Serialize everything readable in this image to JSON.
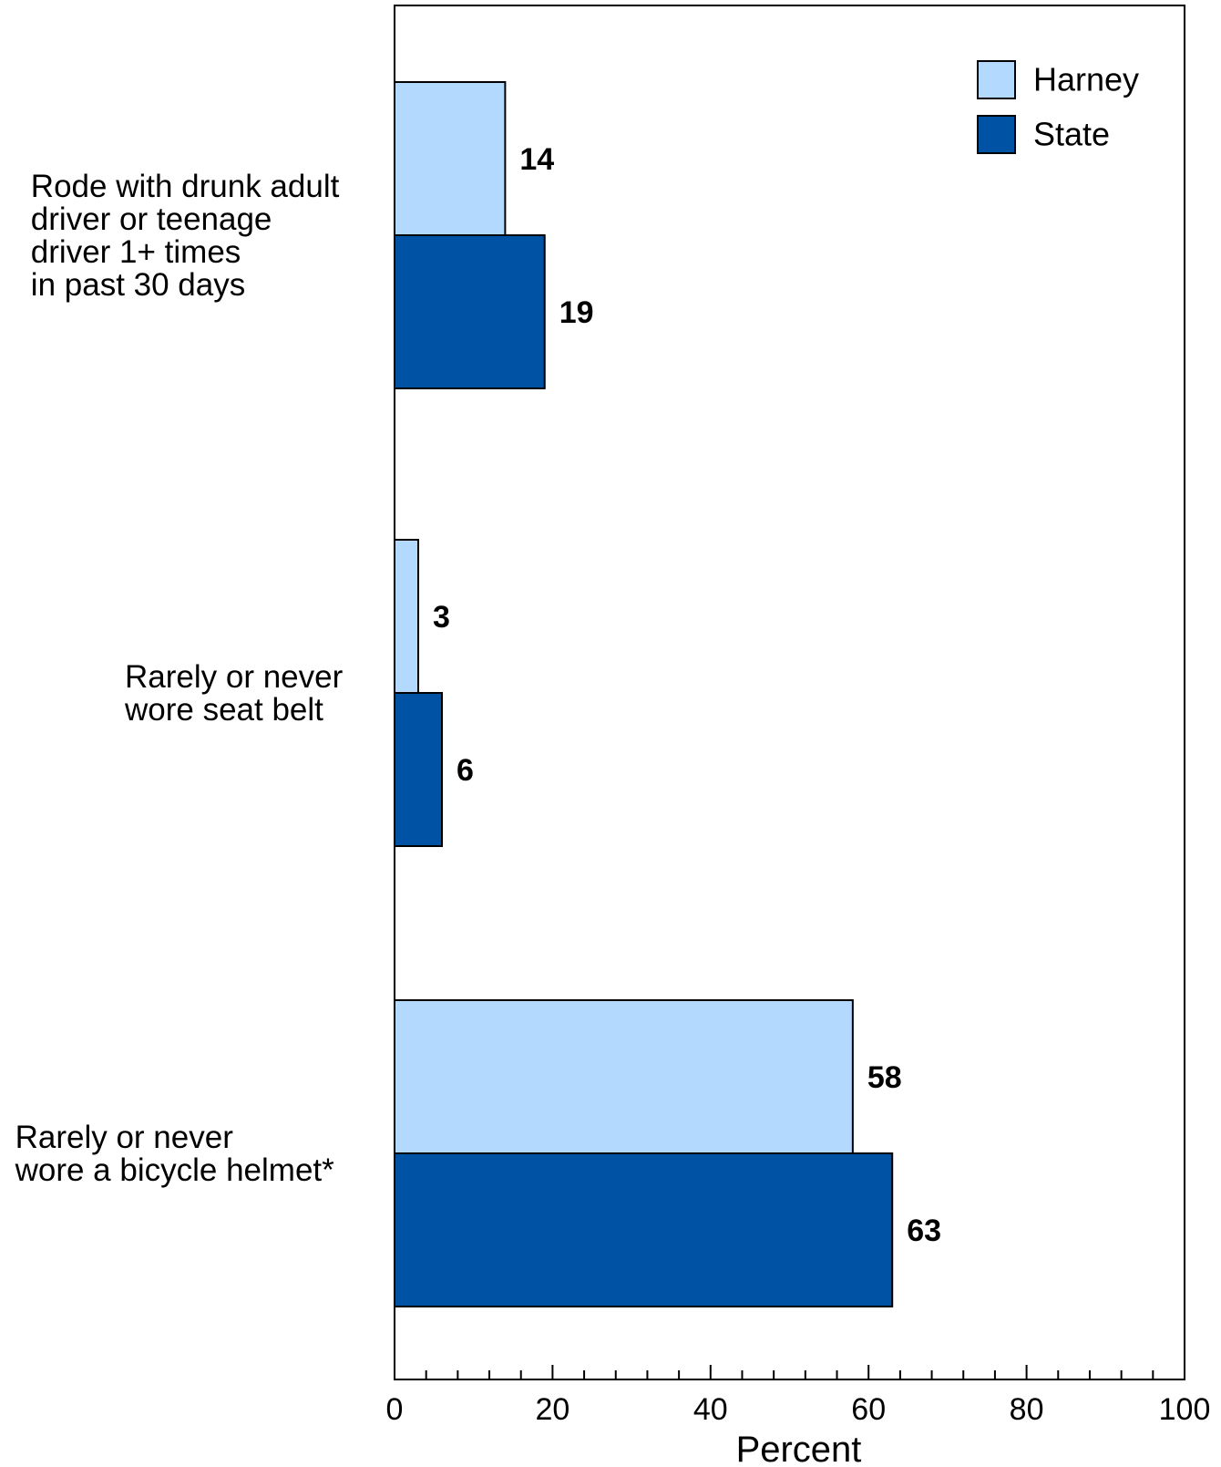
{
  "chart_data": {
    "type": "bar",
    "orientation": "horizontal",
    "categories": [
      [
        "Rode with drunk adult",
        "driver or teenage",
        "driver 1+ times",
        "in past 30 days"
      ],
      [
        "Rarely or never",
        "wore seat belt"
      ],
      [
        "Rarely or never",
        "wore a bicycle helmet*"
      ]
    ],
    "series": [
      {
        "name": "Harney",
        "color": "#b3d9ff",
        "values": [
          14,
          3,
          58
        ]
      },
      {
        "name": "State",
        "color": "#0052a5",
        "values": [
          19,
          6,
          63
        ]
      }
    ],
    "xlabel": "Percent",
    "xlim": [
      0,
      100
    ],
    "xticks": [
      0,
      20,
      40,
      60,
      80,
      100
    ],
    "minor_tick_step": 4,
    "legend_position": "top-right",
    "grid": false
  }
}
